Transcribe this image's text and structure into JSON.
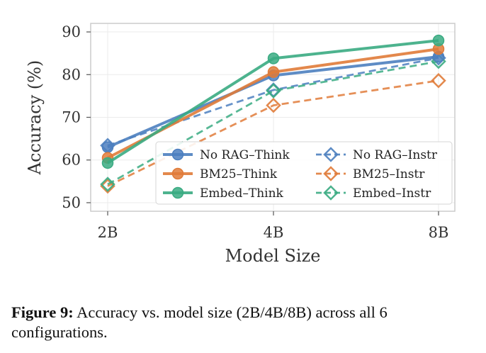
{
  "chart_data": {
    "type": "line",
    "categories": [
      "2B",
      "4B",
      "8B"
    ],
    "xlabel": "Model Size",
    "ylabel": "Accuracy (%)",
    "ylim": [
      48,
      92
    ],
    "yticks": [
      50,
      60,
      70,
      80,
      90
    ],
    "grid": true,
    "legend_position": "lower-right",
    "legend_columns": 2,
    "series": [
      {
        "name": "No RAG–Think",
        "values": [
          63.0,
          79.8,
          84.2
        ],
        "color": "#4c7fbf",
        "style": "solid",
        "marker": "circle"
      },
      {
        "name": "BM25–Think",
        "values": [
          60.5,
          80.6,
          86.0
        ],
        "color": "#e07b39",
        "style": "solid",
        "marker": "circle"
      },
      {
        "name": "Embed–Think",
        "values": [
          59.3,
          83.8,
          88.0
        ],
        "color": "#3aab82",
        "style": "solid",
        "marker": "circle"
      },
      {
        "name": "No RAG–Instr",
        "values": [
          63.4,
          76.4,
          83.9
        ],
        "color": "#4c7fbf",
        "style": "dashed",
        "marker": "diamond"
      },
      {
        "name": "BM25–Instr",
        "values": [
          53.9,
          72.8,
          78.6
        ],
        "color": "#e07b39",
        "style": "dashed",
        "marker": "diamond"
      },
      {
        "name": "Embed–Instr",
        "values": [
          54.3,
          76.2,
          83.1
        ],
        "color": "#3aab82",
        "style": "dashed",
        "marker": "diamond"
      }
    ]
  },
  "caption": {
    "prefix": "Figure 9:",
    "text": " Accuracy vs. model size (2B/4B/8B) across all 6 configurations."
  }
}
